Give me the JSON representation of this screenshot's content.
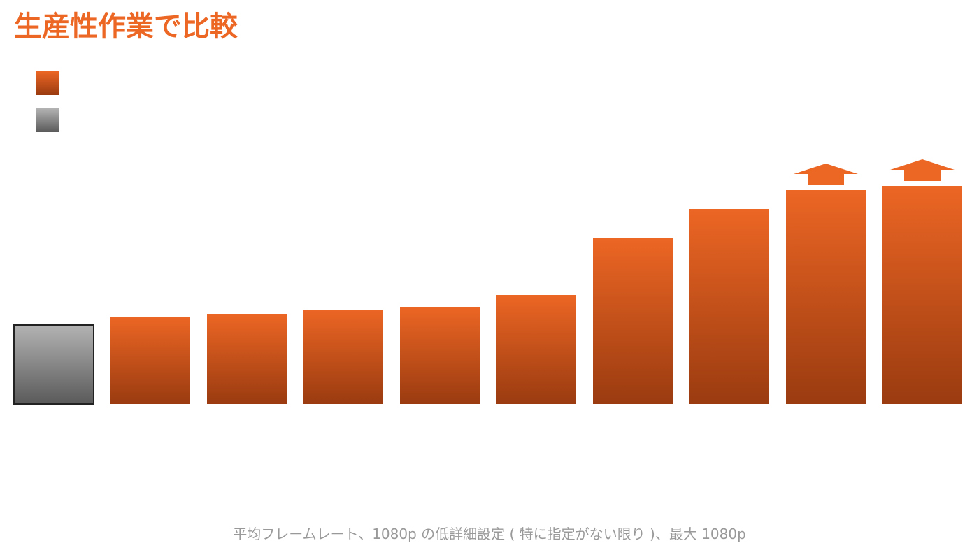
{
  "title": "生産性作業で比較",
  "footnote": "平均フレームレート、1080p の低詳細設定 ( 特に指定がない限り )、最大 1080p",
  "colors": {
    "accent": "#ec6624",
    "accent_dark": "#9a3b10",
    "baseline_top": "#b3b3b3",
    "baseline_bottom": "#5a5a5a",
    "baseline_border": "#222222",
    "footnote": "#999999"
  },
  "legend": {
    "items": [
      {
        "series": "orange",
        "icon": "orange-square-icon",
        "label": ""
      },
      {
        "series": "gray",
        "icon": "gray-square-icon",
        "label": ""
      }
    ]
  },
  "chart_data": {
    "type": "bar",
    "title": "生産性作業で比較",
    "xlabel": "",
    "ylabel": "",
    "ylim": [
      0,
      400
    ],
    "grid": false,
    "legend_placement": "top-left",
    "categories": [
      "",
      "",
      "",
      "",
      "",
      "",
      "",
      "",
      "",
      ""
    ],
    "series": [
      {
        "values": [
          113,
          125,
          129,
          135,
          139,
          156,
          237,
          279,
          306,
          312
        ],
        "highlight": [
          true,
          false,
          false,
          false,
          false,
          false,
          false,
          false,
          false,
          false
        ],
        "up_arrow": [
          false,
          false,
          false,
          false,
          false,
          false,
          false,
          false,
          true,
          true
        ]
      }
    ]
  }
}
